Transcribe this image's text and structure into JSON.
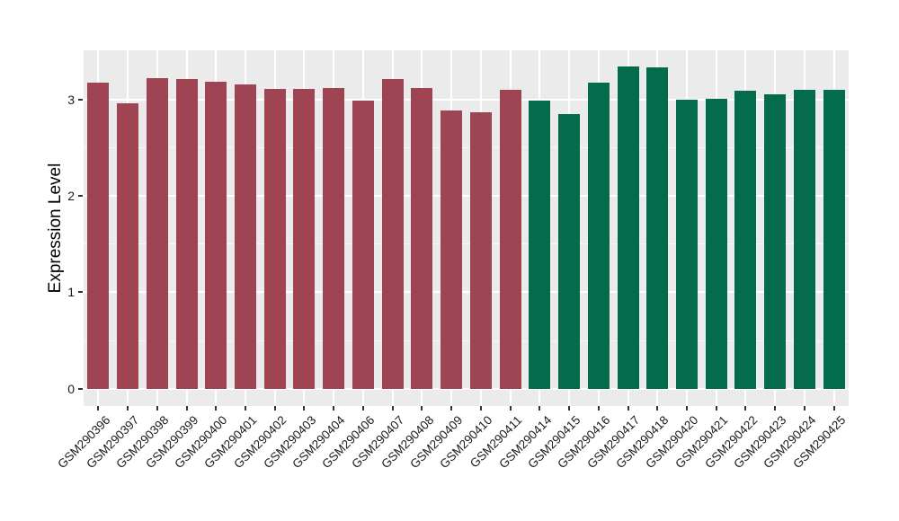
{
  "figure": {
    "background": "#FFFFFF"
  },
  "chart_data": {
    "type": "bar",
    "title": "",
    "xlabel": "",
    "ylabel": "Expression Level",
    "yticks": [
      0,
      1,
      2,
      3
    ],
    "yminor": [
      0.5,
      1.5,
      2.5
    ],
    "ylim": [
      -0.18,
      3.51
    ],
    "grid": "major and minor horizontal white gridlines plus vertical white gridlines at each category center, on gray panel",
    "legend_position": "none",
    "panel_background": "#EBEBEB",
    "gridline_color": "#FFFFFF",
    "tick_color": "#333333",
    "tick_label_color": "#1A1A1A",
    "categories": [
      "GSM290396",
      "GSM290397",
      "GSM290398",
      "GSM290399",
      "GSM290400",
      "GSM290401",
      "GSM290402",
      "GSM290403",
      "GSM290404",
      "GSM290406",
      "GSM290407",
      "GSM290408",
      "GSM290409",
      "GSM290410",
      "GSM290411",
      "GSM290414",
      "GSM290415",
      "GSM290416",
      "GSM290417",
      "GSM290418",
      "GSM290420",
      "GSM290421",
      "GSM290422",
      "GSM290423",
      "GSM290424",
      "GSM290425"
    ],
    "values": [
      3.17,
      2.96,
      3.22,
      3.21,
      3.18,
      3.16,
      3.11,
      3.11,
      3.12,
      2.99,
      3.21,
      3.12,
      2.89,
      2.87,
      3.1,
      2.99,
      2.85,
      3.17,
      3.34,
      3.33,
      3.0,
      3.01,
      3.09,
      3.05,
      3.1,
      3.1
    ],
    "groups": [
      "group1",
      "group1",
      "group1",
      "group1",
      "group1",
      "group1",
      "group1",
      "group1",
      "group1",
      "group1",
      "group1",
      "group1",
      "group1",
      "group1",
      "group1",
      "group2",
      "group2",
      "group2",
      "group2",
      "group2",
      "group2",
      "group2",
      "group2",
      "group2",
      "group2",
      "group2"
    ],
    "group_colors": {
      "group1": "#9E4452",
      "group2": "#046B4C"
    }
  }
}
